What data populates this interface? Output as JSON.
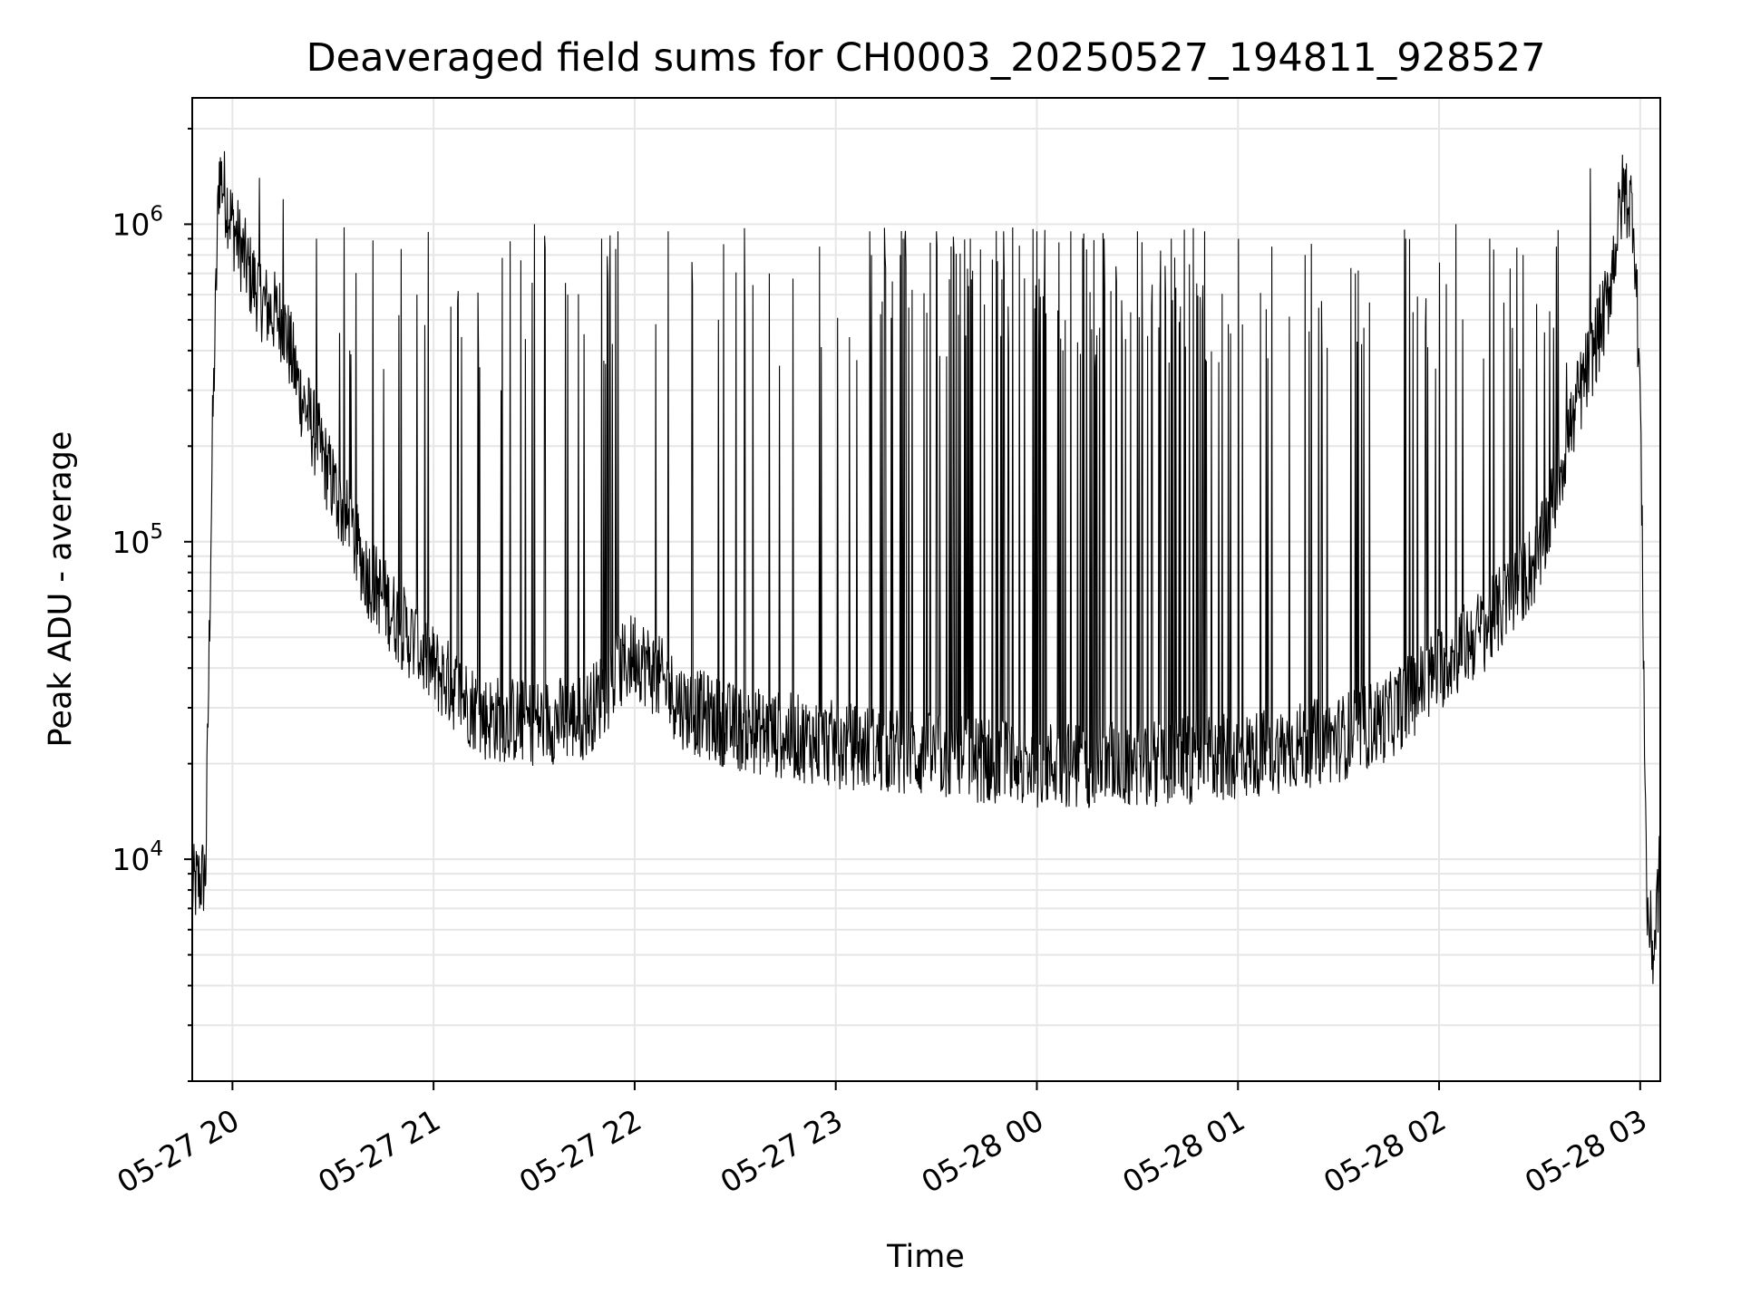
{
  "chart_data": {
    "type": "line",
    "title": "Deaveraged field sums for CH0003_20250527_194811_928527",
    "xlabel": "Time",
    "ylabel": "Peak ADU - average",
    "yscale": "log",
    "grid": true,
    "line_color": "#000000",
    "grid_color": "#e6e6e6",
    "x_range": [
      "05-27 19:48",
      "05-28 03:06"
    ],
    "y_range": [
      2000,
      2500000
    ],
    "x_ticks": [
      "05-27 20",
      "05-27 21",
      "05-27 22",
      "05-27 23",
      "05-28 00",
      "05-28 01",
      "05-28 02",
      "05-28 03"
    ],
    "y_ticks": [
      {
        "base": "10",
        "exp": "4",
        "value": 10000
      },
      {
        "base": "10",
        "exp": "5",
        "value": 100000
      },
      {
        "base": "10",
        "exp": "6",
        "value": 1000000
      }
    ],
    "series": [
      {
        "x": [
          "05-27 19:48",
          "05-27 19:52",
          "05-27 19:54",
          "05-27 19:56",
          "05-27 20:00",
          "05-27 20:05",
          "05-27 20:10",
          "05-27 20:15",
          "05-27 20:20",
          "05-27 20:30",
          "05-27 20:40",
          "05-27 20:50",
          "05-27 21:00",
          "05-27 21:15",
          "05-27 21:30",
          "05-27 21:45",
          "05-27 22:00",
          "05-27 22:15",
          "05-27 22:30",
          "05-27 23:00",
          "05-27 23:30",
          "05-28 00:00",
          "05-28 00:30",
          "05-28 01:00",
          "05-28 01:30",
          "05-28 01:45",
          "05-28 02:00",
          "05-28 02:15",
          "05-28 02:30",
          "05-28 02:40",
          "05-28 02:50",
          "05-28 02:55",
          "05-28 02:58",
          "05-28 03:00",
          "05-28 03:02",
          "05-28 03:04",
          "05-28 03:06"
        ],
        "y": [
          8000,
          9000,
          200000,
          1500000,
          1000000,
          700000,
          550000,
          500000,
          300000,
          150000,
          80000,
          55000,
          40000,
          28000,
          27000,
          28000,
          45000,
          30000,
          26000,
          23000,
          21000,
          20000,
          20000,
          21000,
          24000,
          28000,
          40000,
          55000,
          90000,
          250000,
          550000,
          1300000,
          1100000,
          300000,
          7000,
          5000,
          10000
        ],
        "spikes": [
          [
            "05-27 20:08",
            1400000
          ],
          [
            "05-27 20:15",
            1200000
          ],
          [
            "05-27 20:25",
            900000
          ],
          [
            "05-27 20:35",
            400000
          ],
          [
            "05-27 20:45",
            350000
          ],
          [
            "05-27 20:55",
            600000
          ],
          [
            "05-27 21:05",
            550000
          ],
          [
            "05-27 21:20",
            300000
          ],
          [
            "05-27 21:30",
            1000000
          ],
          [
            "05-27 21:40",
            600000
          ],
          [
            "05-27 21:50",
            900000
          ],
          [
            "05-27 21:55",
            950000
          ],
          [
            "05-27 22:10",
            950000
          ],
          [
            "05-27 22:25",
            500000
          ],
          [
            "05-27 22:40",
            700000
          ],
          [
            "05-27 22:55",
            850000
          ],
          [
            "05-27 23:10",
            950000
          ],
          [
            "05-27 23:20",
            900000
          ],
          [
            "05-27 23:30",
            950000
          ],
          [
            "05-27 23:40",
            900000
          ],
          [
            "05-27 23:50",
            950000
          ],
          [
            "05-28 00:00",
            950000
          ],
          [
            "05-28 00:10",
            950000
          ],
          [
            "05-28 00:20",
            900000
          ],
          [
            "05-28 00:30",
            950000
          ],
          [
            "05-28 00:40",
            900000
          ],
          [
            "05-28 00:50",
            950000
          ],
          [
            "05-28 01:00",
            900000
          ],
          [
            "05-28 01:10",
            850000
          ],
          [
            "05-28 01:20",
            800000
          ],
          [
            "05-28 01:35",
            700000
          ],
          [
            "05-28 01:50",
            900000
          ],
          [
            "05-28 02:05",
            1000000
          ],
          [
            "05-28 02:15",
            900000
          ],
          [
            "05-28 02:25",
            800000
          ],
          [
            "05-28 02:35",
            850000
          ],
          [
            "05-28 02:45",
            1500000
          ]
        ]
      }
    ]
  }
}
